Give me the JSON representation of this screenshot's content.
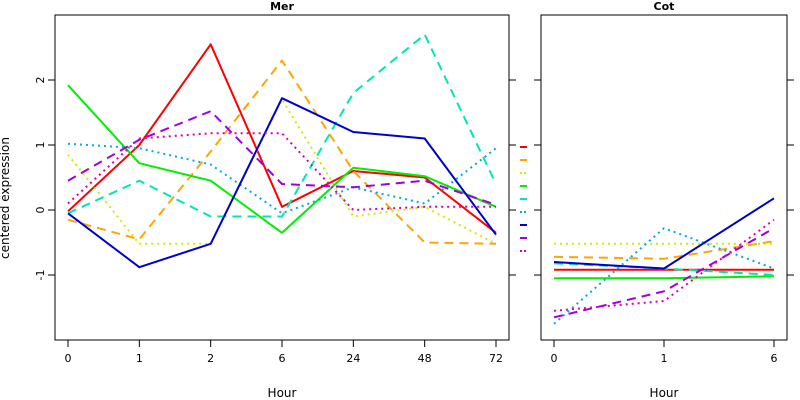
{
  "chart_data": [
    {
      "type": "line",
      "title": "Mer",
      "xlabel": "Hour",
      "ylabel": "centered expression",
      "x": [
        "0",
        "1",
        "2",
        "6",
        "24",
        "48",
        "72"
      ],
      "ylim": [
        -2,
        3
      ],
      "yticks": [
        -1,
        0,
        1,
        2
      ],
      "grid": false,
      "series": [
        {
          "color": "#FF0000",
          "dash": "solid",
          "values": [
            -0.02,
            1.0,
            2.55,
            0.05,
            0.6,
            0.5,
            -0.35
          ]
        },
        {
          "color": "#FFA500",
          "dash": "dashed",
          "values": [
            -0.15,
            -0.45,
            0.9,
            2.3,
            0.6,
            -0.5,
            -0.52
          ]
        },
        {
          "color": "#C8F000",
          "dash": "dotted",
          "values": [
            0.85,
            -0.52,
            -0.52,
            1.7,
            -0.1,
            0.05,
            -0.52
          ]
        },
        {
          "color": "#00EE00",
          "dash": "solid",
          "values": [
            1.92,
            0.72,
            0.45,
            -0.35,
            0.65,
            0.52,
            0.05
          ]
        },
        {
          "color": "#00E8B0",
          "dash": "dashed",
          "values": [
            -0.05,
            0.45,
            -0.1,
            -0.1,
            1.8,
            2.7,
            0.4
          ]
        },
        {
          "color": "#00A8F0",
          "dash": "dotted",
          "values": [
            1.02,
            0.95,
            0.7,
            -0.05,
            0.35,
            0.1,
            0.95
          ]
        },
        {
          "color": "#0000CC",
          "dash": "solid",
          "values": [
            -0.05,
            -0.88,
            -0.52,
            1.72,
            1.2,
            1.1,
            -0.38
          ]
        },
        {
          "color": "#A000E0",
          "dash": "dashed",
          "values": [
            0.45,
            1.08,
            1.52,
            0.4,
            0.35,
            0.45,
            0.08
          ]
        },
        {
          "color": "#E000B0",
          "dash": "dotted",
          "values": [
            0.1,
            1.1,
            1.18,
            1.18,
            0.0,
            0.05,
            0.05
          ]
        }
      ]
    },
    {
      "type": "line",
      "title": "Cot",
      "xlabel": "Hour",
      "ylabel": "",
      "x": [
        "0",
        "1",
        "6"
      ],
      "ylim": [
        -2,
        3
      ],
      "yticks": [
        -1,
        0,
        1,
        2
      ],
      "grid": false,
      "series": [
        {
          "color": "#FF0000",
          "dash": "solid",
          "values": [
            -0.92,
            -0.92,
            -0.92
          ]
        },
        {
          "color": "#FFA500",
          "dash": "dashed",
          "values": [
            -0.72,
            -0.75,
            -0.48
          ]
        },
        {
          "color": "#C8F000",
          "dash": "dotted",
          "values": [
            -0.52,
            -0.52,
            -0.52
          ]
        },
        {
          "color": "#00EE00",
          "dash": "solid",
          "values": [
            -1.05,
            -1.05,
            -1.02
          ]
        },
        {
          "color": "#00E8B0",
          "dash": "dashed",
          "values": [
            -0.82,
            -0.9,
            -1.0
          ]
        },
        {
          "color": "#00A8F0",
          "dash": "dotted",
          "values": [
            -1.75,
            -0.28,
            -0.9
          ]
        },
        {
          "color": "#0000CC",
          "dash": "solid",
          "values": [
            -0.8,
            -0.9,
            0.18
          ]
        },
        {
          "color": "#A000E0",
          "dash": "dashed",
          "values": [
            -1.65,
            -1.25,
            -0.28
          ]
        },
        {
          "color": "#E000B0",
          "dash": "dotted",
          "values": [
            -1.55,
            -1.4,
            -0.15
          ]
        }
      ]
    }
  ]
}
